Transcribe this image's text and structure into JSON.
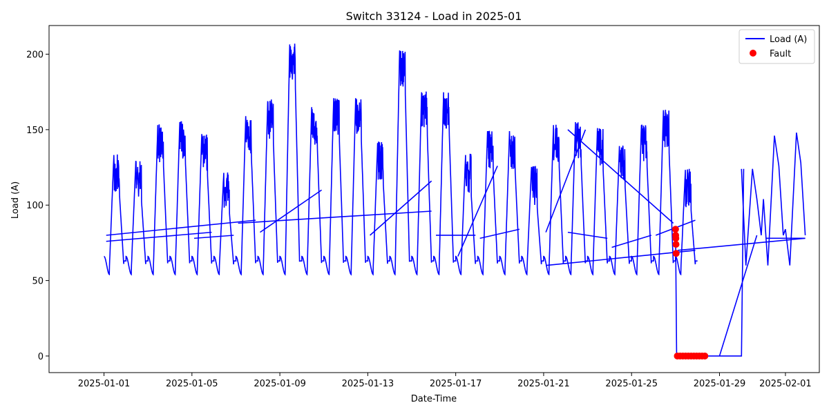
{
  "chart_data": {
    "type": "line",
    "title": "Switch 33124 - Load in 2025-01",
    "xlabel": "Date-Time",
    "ylabel": "Load (A)",
    "xlim": [
      "2024-12-29T12:00",
      "2025-02-02T13:00"
    ],
    "ylim": [
      -11,
      219
    ],
    "x_ticks": [
      "2025-01-01",
      "2025-01-05",
      "2025-01-09",
      "2025-01-13",
      "2025-01-17",
      "2025-01-21",
      "2025-01-25",
      "2025-01-29",
      "2025-02-01"
    ],
    "y_ticks": [
      0,
      50,
      100,
      150,
      200
    ],
    "grid": false,
    "legend_position": "top-right",
    "series": [
      {
        "name": "Load (A)",
        "kind": "line",
        "color": "#0000ff",
        "daily_peaks": [
          {
            "date": "2025-01-01",
            "peak": 134
          },
          {
            "date": "2025-01-02",
            "peak": 130
          },
          {
            "date": "2025-01-03",
            "peak": 154
          },
          {
            "date": "2025-01-04",
            "peak": 156
          },
          {
            "date": "2025-01-05",
            "peak": 148
          },
          {
            "date": "2025-01-06",
            "peak": 122
          },
          {
            "date": "2025-01-07",
            "peak": 160
          },
          {
            "date": "2025-01-08",
            "peak": 170
          },
          {
            "date": "2025-01-09",
            "peak": 208
          },
          {
            "date": "2025-01-10",
            "peak": 166
          },
          {
            "date": "2025-01-11",
            "peak": 172
          },
          {
            "date": "2025-01-12",
            "peak": 172
          },
          {
            "date": "2025-01-13",
            "peak": 142
          },
          {
            "date": "2025-01-14",
            "peak": 204
          },
          {
            "date": "2025-01-15",
            "peak": 176
          },
          {
            "date": "2025-01-16",
            "peak": 176
          },
          {
            "date": "2025-01-17",
            "peak": 134
          },
          {
            "date": "2025-01-18",
            "peak": 150
          },
          {
            "date": "2025-01-19",
            "peak": 150
          },
          {
            "date": "2025-01-20",
            "peak": 126
          },
          {
            "date": "2025-01-21",
            "peak": 154
          },
          {
            "date": "2025-01-22",
            "peak": 156
          },
          {
            "date": "2025-01-23",
            "peak": 152
          },
          {
            "date": "2025-01-24",
            "peak": 140
          },
          {
            "date": "2025-01-25",
            "peak": 154
          },
          {
            "date": "2025-01-26",
            "peak": 164
          },
          {
            "date": "2025-01-27",
            "peak": 124
          }
        ],
        "daily_min": 60,
        "outage": {
          "start": "2025-01-27T00:00",
          "end": "2025-01-30T00:00",
          "value": 0
        },
        "recovery_peaks": [
          {
            "date": "2025-01-30",
            "peak": 124
          },
          {
            "date": "2025-01-31",
            "peak": 146
          },
          {
            "date": "2025-02-01",
            "peak": 148
          }
        ]
      },
      {
        "name": "Fault",
        "kind": "scatter",
        "color": "#ff0000",
        "points": [
          {
            "x": "2025-01-27T00:00",
            "y": 84
          },
          {
            "x": "2025-01-27T00:10",
            "y": 80
          },
          {
            "x": "2025-01-27T00:20",
            "y": 78
          },
          {
            "x": "2025-01-27T00:30",
            "y": 74
          },
          {
            "x": "2025-01-27T00:40",
            "y": 68
          },
          {
            "x": "2025-01-27T02:00",
            "y": 0
          },
          {
            "x": "2025-01-27T05:00",
            "y": 0
          },
          {
            "x": "2025-01-27T08:00",
            "y": 0
          },
          {
            "x": "2025-01-27T11:00",
            "y": 0
          },
          {
            "x": "2025-01-27T14:00",
            "y": 0
          },
          {
            "x": "2025-01-27T17:00",
            "y": 0
          },
          {
            "x": "2025-01-27T20:00",
            "y": 0
          },
          {
            "x": "2025-01-27T23:00",
            "y": 0
          },
          {
            "x": "2025-01-28T02:00",
            "y": 0
          },
          {
            "x": "2025-01-28T05:00",
            "y": 0
          },
          {
            "x": "2025-01-28T08:00",
            "y": 0
          }
        ]
      }
    ]
  }
}
